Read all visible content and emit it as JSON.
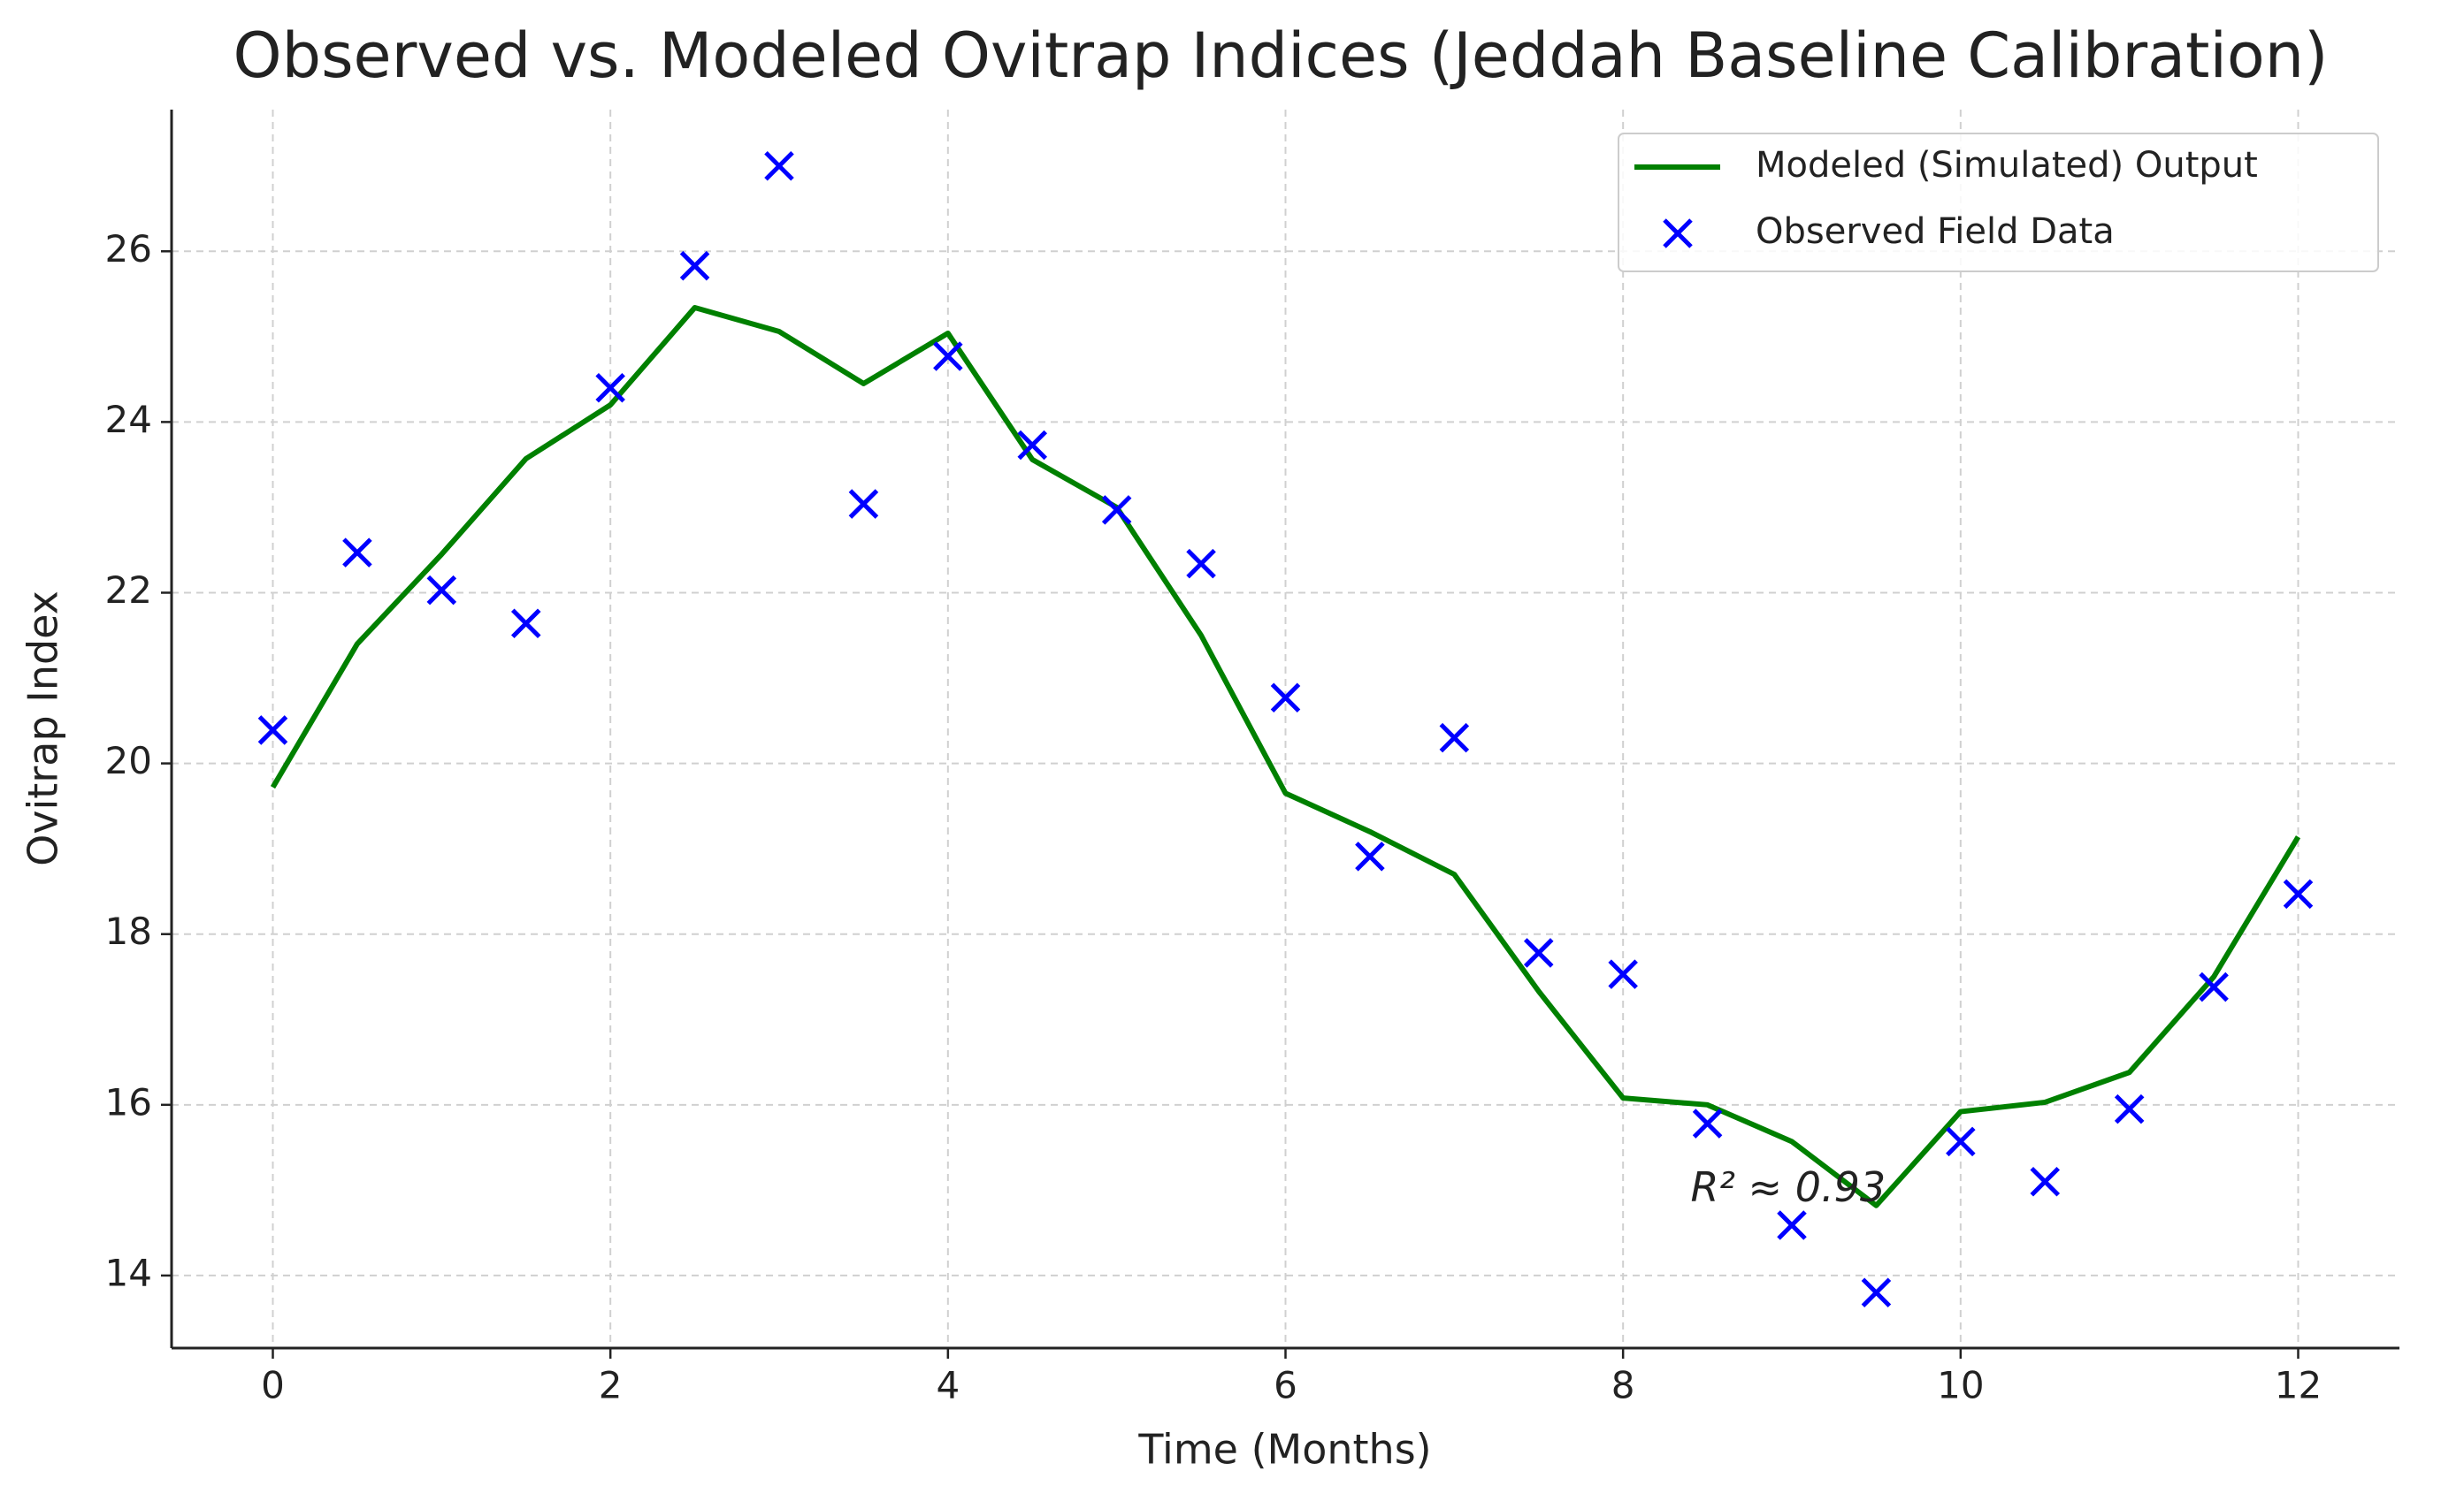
{
  "chart_data": {
    "type": "line",
    "title": "Observed vs. Modeled Ovitrap Indices (Jeddah Baseline Calibration)",
    "x_label": "Time (Months)",
    "y_label": "Ovitrap Index",
    "x": [
      0,
      0.5,
      1,
      1.5,
      2,
      2.5,
      3,
      3.5,
      4,
      4.5,
      5,
      5.5,
      6,
      6.5,
      7,
      7.5,
      8,
      8.5,
      9,
      9.5,
      10,
      10.5,
      11,
      11.5,
      12
    ],
    "series": [
      {
        "name": "Modeled (Simulated) Output",
        "color": "#008000",
        "mark": "line",
        "values": [
          19.72,
          21.4,
          22.45,
          23.57,
          24.2,
          25.34,
          25.06,
          24.45,
          25.04,
          23.56,
          23.0,
          21.5,
          19.65,
          19.2,
          18.7,
          17.33,
          16.08,
          16.0,
          15.57,
          14.82,
          15.92,
          16.03,
          16.38,
          17.5,
          19.14
        ]
      },
      {
        "name": "Observed Field Data",
        "color": "#0000ff",
        "mark": "x",
        "values": [
          20.39,
          22.47,
          22.03,
          21.64,
          24.4,
          25.83,
          27.0,
          23.04,
          24.77,
          23.73,
          22.97,
          22.34,
          20.77,
          18.91,
          20.3,
          17.78,
          17.53,
          15.78,
          14.59,
          13.8,
          15.57,
          15.1,
          15.95,
          17.38,
          18.47
        ]
      }
    ],
    "annotation": "R² ≈ 0.93",
    "xlim": [
      -0.6,
      12.6
    ],
    "ylim": [
      13.15,
      27.66
    ],
    "xticks": [
      0,
      2,
      4,
      6,
      8,
      10,
      12
    ],
    "yticks": [
      14,
      16,
      18,
      20,
      22,
      24,
      26
    ],
    "grid": true,
    "legend": "upper right"
  }
}
